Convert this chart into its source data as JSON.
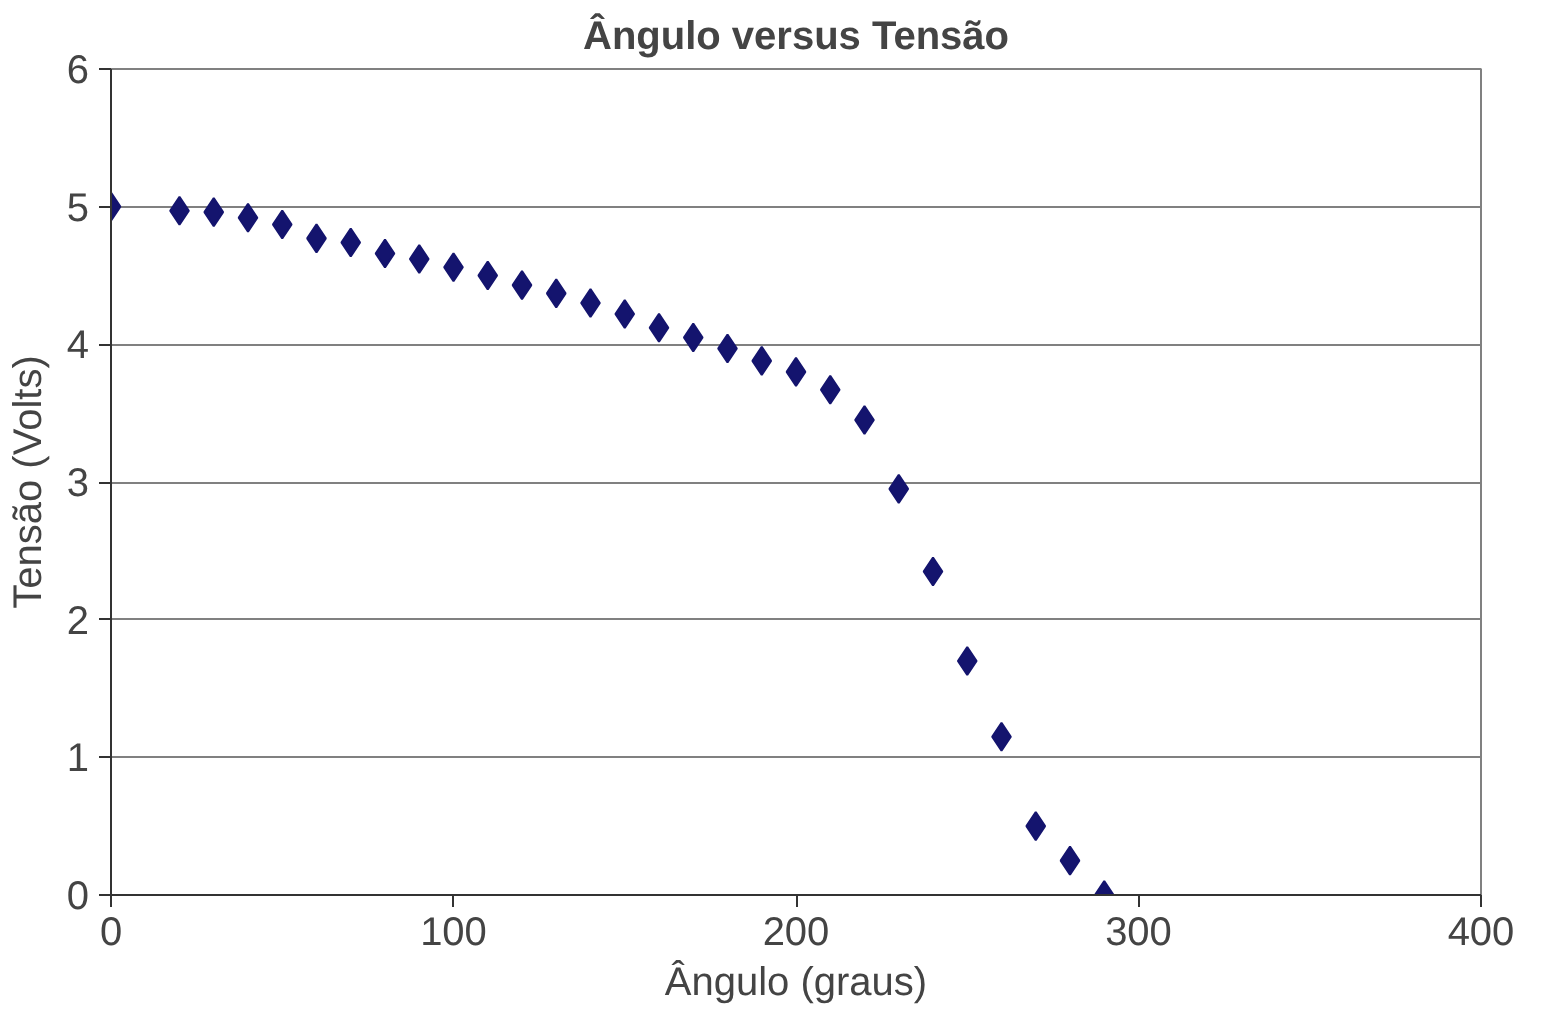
{
  "chart_data": {
    "type": "scatter",
    "title": "Ângulo versus Tensão",
    "xlabel": "Ângulo (graus)",
    "ylabel": "Tensão (Volts)",
    "x": [
      0,
      20,
      30,
      40,
      50,
      60,
      70,
      80,
      90,
      100,
      110,
      120,
      130,
      140,
      150,
      160,
      170,
      180,
      190,
      200,
      210,
      220,
      230,
      240,
      250,
      260,
      270,
      280,
      290
    ],
    "series": [
      {
        "color": "#14146e",
        "values": [
          5.0,
          4.97,
          4.96,
          4.92,
          4.87,
          4.77,
          4.74,
          4.66,
          4.62,
          4.56,
          4.5,
          4.43,
          4.37,
          4.3,
          4.22,
          4.12,
          4.05,
          3.97,
          3.88,
          3.8,
          3.67,
          3.45,
          2.95,
          2.35,
          1.7,
          1.15,
          0.5,
          0.25,
          0.0
        ]
      }
    ],
    "xlim": [
      0,
      400
    ],
    "ylim": [
      0,
      6
    ],
    "xticks": [
      0,
      100,
      200,
      300,
      400
    ],
    "yticks": [
      0,
      1,
      2,
      3,
      4,
      5,
      6
    ],
    "grid": "y",
    "marker": "diamond"
  }
}
